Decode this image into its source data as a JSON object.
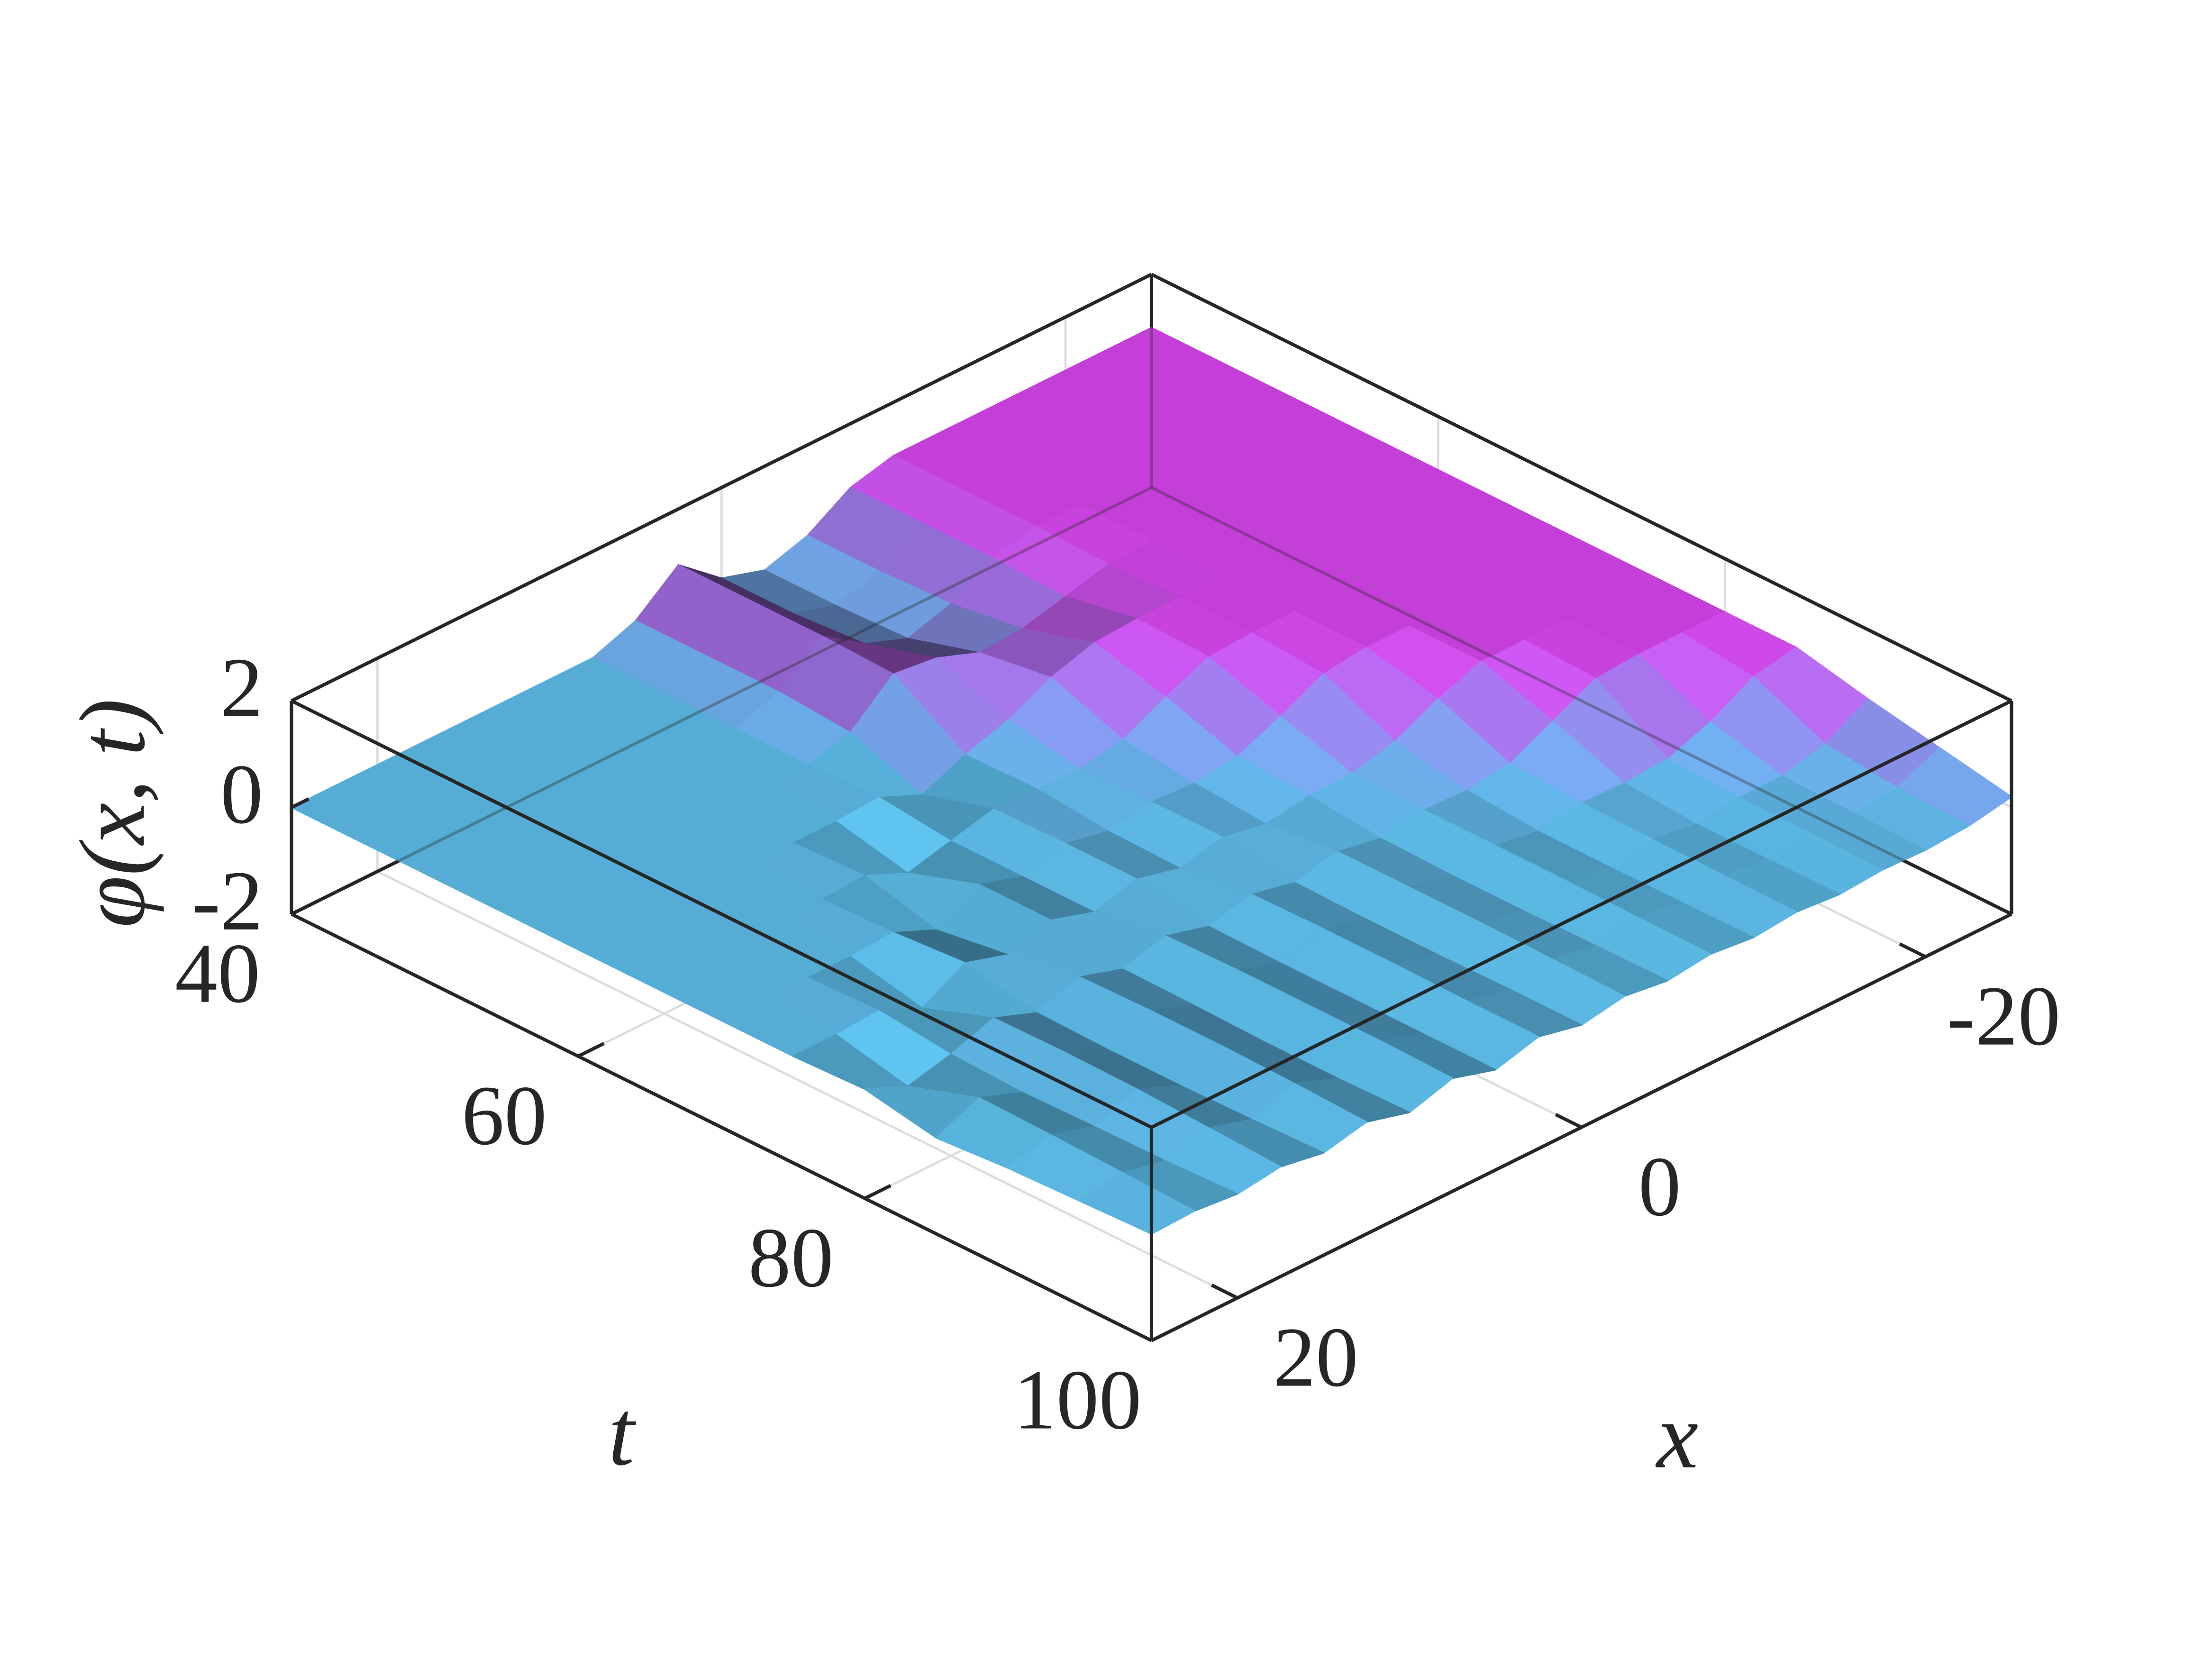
{
  "chart_data": {
    "type": "surface",
    "x_label": "x",
    "t_label": "t",
    "z_label": "φ(x, t)",
    "tlim": [
      40,
      100
    ],
    "tticks": [
      40,
      60,
      80,
      100
    ],
    "xlim": [
      -25,
      25
    ],
    "xticks": [
      -20,
      0,
      20
    ],
    "x_reversed": true,
    "zlim": [
      -2,
      2
    ],
    "zticks": [
      -2,
      0,
      2
    ],
    "grid": true,
    "colormap": [
      "#58b4de",
      "#cc42e0"
    ],
    "clim": [
      0,
      1
    ],
    "t": [
      40,
      45,
      50,
      55,
      60,
      65,
      70,
      75,
      80,
      85,
      90,
      95,
      100
    ],
    "x": [
      -25,
      -22.5,
      -20,
      -17.5,
      -15,
      -12.5,
      -10,
      -7.5,
      -5,
      -2.5,
      0,
      2.5,
      5,
      7.5,
      10,
      12.5,
      15,
      17.5,
      20,
      22.5,
      25
    ],
    "z": [
      [
        1,
        1,
        1,
        1,
        1,
        1,
        1,
        0.8,
        0.3,
        0.05,
        0.3,
        0.95,
        0.3,
        0,
        0,
        0,
        0,
        0,
        0,
        0,
        0
      ],
      [
        1,
        1,
        1,
        1,
        1,
        1,
        1,
        0.8,
        0.3,
        0.05,
        0.3,
        0.95,
        0.3,
        0,
        0,
        0,
        0,
        0,
        0,
        0,
        0
      ],
      [
        1,
        1,
        1,
        1,
        1,
        1,
        1,
        0.8,
        0.35,
        0.1,
        0.4,
        0.95,
        0.3,
        0,
        0,
        0,
        0,
        0,
        0,
        0,
        0
      ],
      [
        1,
        1,
        1,
        1,
        1,
        1,
        0.95,
        0.75,
        0.55,
        0.5,
        0.8,
        0.9,
        0.2,
        0,
        0,
        0,
        0,
        0,
        0,
        0,
        0
      ],
      [
        1,
        1,
        1,
        1,
        1,
        1,
        1,
        1,
        0.95,
        0.7,
        0.3,
        0.05,
        -0.3,
        0.05,
        0,
        0,
        0,
        0,
        0,
        0,
        0
      ],
      [
        1,
        1,
        1,
        1,
        1,
        1,
        1,
        0.95,
        0.6,
        0.2,
        0.05,
        0.08,
        0.1,
        -0.1,
        -0.3,
        0.05,
        0,
        0,
        0,
        0,
        0
      ],
      [
        1,
        1,
        1,
        1,
        1,
        1,
        0.9,
        0.5,
        0.15,
        0.05,
        0.1,
        -0.05,
        0.12,
        -0.1,
        0.15,
        -0.3,
        0.05,
        0,
        0,
        0,
        0
      ],
      [
        1,
        1,
        1,
        1,
        1,
        0.7,
        0.3,
        0.1,
        0.08,
        -0.05,
        0.1,
        -0.08,
        0.12,
        -0.1,
        0.15,
        -0.1,
        0.15,
        -0.3,
        0.05,
        0,
        0
      ],
      [
        1,
        1,
        1,
        0.95,
        0.55,
        0.15,
        0.05,
        0.08,
        -0.05,
        0.1,
        -0.08,
        0.1,
        -0.1,
        0.12,
        -0.1,
        0.15,
        -0.12,
        0.18,
        -0.1,
        -0.3,
        0.05
      ],
      [
        1,
        0.85,
        0.4,
        0.1,
        0.05,
        0.08,
        -0.05,
        0.08,
        -0.08,
        0.1,
        -0.1,
        0.12,
        -0.12,
        0.15,
        -0.12,
        0.18,
        -0.15,
        0.2,
        -0.15,
        0.15,
        -0.2
      ],
      [
        0.7,
        0.25,
        0.05,
        0.05,
        -0.05,
        0.06,
        -0.06,
        0.08,
        -0.08,
        0.1,
        -0.1,
        0.12,
        -0.12,
        0.15,
        -0.15,
        0.18,
        -0.15,
        0.18,
        -0.12,
        0.12,
        -0.1
      ],
      [
        0.45,
        0.1,
        0.02,
        0.04,
        -0.04,
        0.05,
        -0.05,
        0.06,
        -0.06,
        0.08,
        -0.08,
        0.1,
        -0.12,
        0.15,
        -0.15,
        0.15,
        -0.12,
        0.12,
        -0.1,
        0.08,
        -0.05
      ],
      [
        0.2,
        0.05,
        0,
        0.03,
        -0.03,
        0.04,
        -0.04,
        0.05,
        -0.05,
        0.06,
        -0.08,
        0.1,
        -0.12,
        0.12,
        -0.12,
        0.1,
        -0.08,
        0.06,
        -0.05,
        0.03,
        0
      ]
    ]
  }
}
